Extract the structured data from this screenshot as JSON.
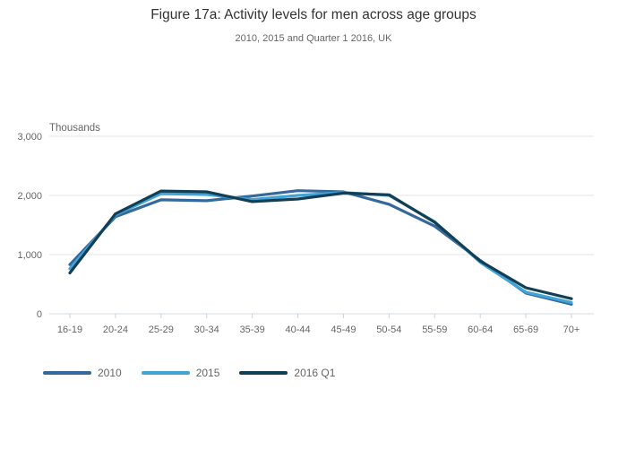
{
  "header": {
    "title": "Figure 17a: Activity levels for men across age groups",
    "subtitle": "2010, 2015 and Quarter 1 2016, UK"
  },
  "chart_data": {
    "type": "line",
    "title": "Figure 17a: Activity levels for men across age groups",
    "subtitle": "2010, 2015 and Quarter 1 2016, UK",
    "unit_label": "Thousands",
    "xlabel": "",
    "ylabel": "Thousands",
    "ylim": [
      0,
      3000
    ],
    "yticks": [
      0,
      1000,
      2000,
      3000
    ],
    "ytick_labels": [
      "0",
      "1,000",
      "2,000",
      "3,000"
    ],
    "grid": true,
    "legend_position": "bottom-left",
    "categories": [
      "16-19",
      "20-24",
      "25-29",
      "30-34",
      "35-39",
      "40-44",
      "45-49",
      "50-54",
      "55-59",
      "60-64",
      "65-69",
      "70+"
    ],
    "series": [
      {
        "name": "2010",
        "color": "#35689b",
        "values": [
          830,
          1640,
          1925,
          1910,
          1990,
          2080,
          2060,
          1850,
          1480,
          900,
          350,
          160
        ]
      },
      {
        "name": "2015",
        "color": "#41a3d7",
        "values": [
          760,
          1670,
          2030,
          2015,
          1930,
          2000,
          2050,
          2000,
          1555,
          870,
          365,
          190
        ]
      },
      {
        "name": "2016 Q1",
        "color": "#123f54",
        "values": [
          690,
          1690,
          2075,
          2060,
          1895,
          1940,
          2040,
          2010,
          1545,
          890,
          440,
          255
        ]
      }
    ]
  }
}
